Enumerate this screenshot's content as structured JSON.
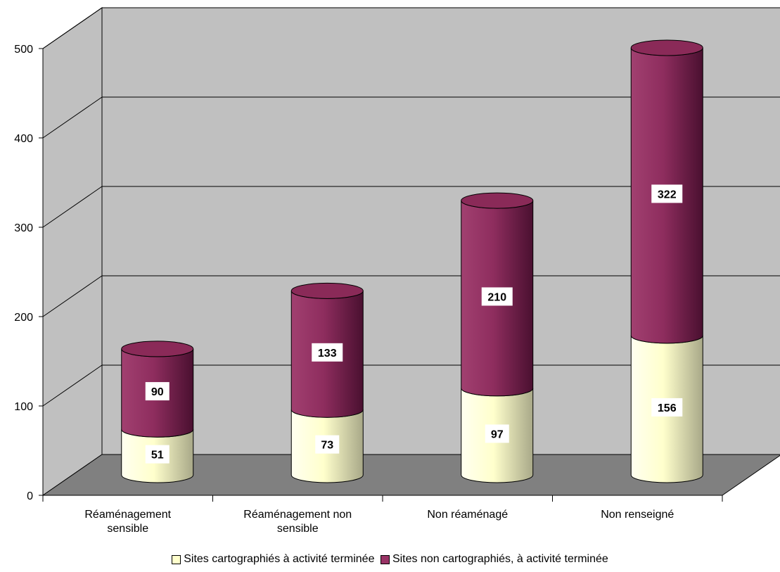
{
  "chart_data": {
    "type": "bar",
    "stacked": true,
    "shape": "cylinder-3d",
    "categories": [
      [
        "Réaménagement",
        "sensible"
      ],
      [
        "Réaménagement non",
        "sensible"
      ],
      [
        "Non réaménagé"
      ],
      [
        "Non renseigné"
      ]
    ],
    "series": [
      {
        "name": "Sites cartographiés à activité terminée",
        "values": [
          51,
          73,
          97,
          156
        ],
        "color": "#ffffcc"
      },
      {
        "name": "Sites non cartographiés, à activité terminée",
        "values": [
          90,
          133,
          210,
          322
        ],
        "color": "#993366"
      }
    ],
    "ylim": [
      0,
      500
    ],
    "yticks": [
      0,
      100,
      200,
      300,
      400,
      500
    ],
    "grid": true,
    "wall_color": "#c0c0c0",
    "floor_color": "#808080",
    "legend_position": "bottom"
  }
}
